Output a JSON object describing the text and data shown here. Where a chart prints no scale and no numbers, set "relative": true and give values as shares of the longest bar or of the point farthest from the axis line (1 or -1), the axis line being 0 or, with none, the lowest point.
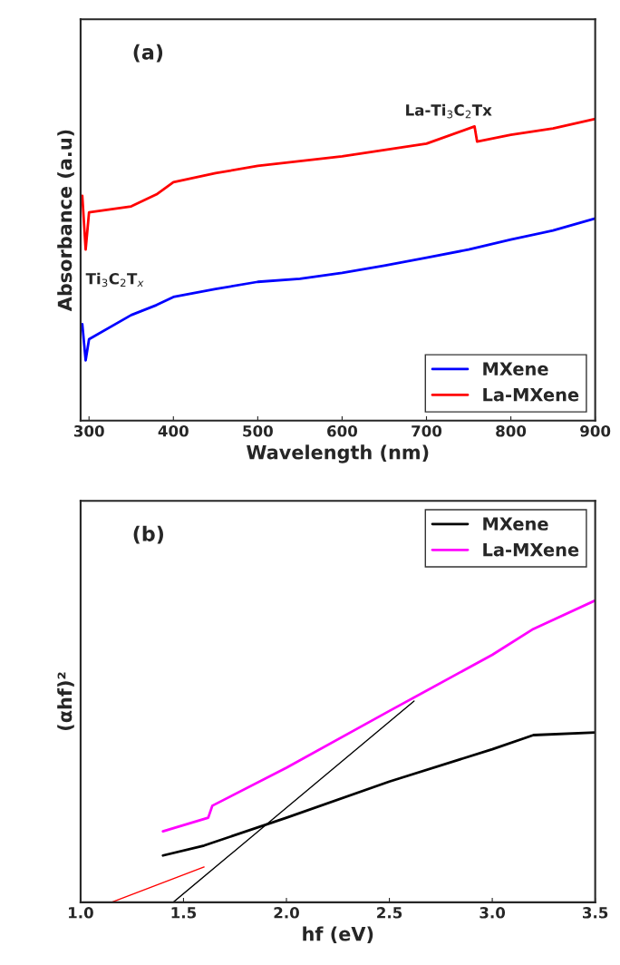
{
  "chart_data": [
    {
      "type": "line",
      "xlabel": "Wavelength (nm)",
      "ylabel": "Absorbance (a.u)",
      "relative": true,
      "xlim": [
        290,
        900
      ],
      "xticks": [
        300,
        400,
        500,
        600,
        700,
        800,
        900
      ],
      "legend": "bottom right",
      "grid": false,
      "annotations": [
        "(a)",
        "La-Ti$_{3}$C$_{2}$Tx",
        "Ti$_{3}$C$_{2}$T$_{x}$"
      ],
      "series": [
        {
          "name": "MXene",
          "color": "#0000ff",
          "x": [
            292,
            296,
            300,
            350,
            380,
            400,
            450,
            500,
            550,
            600,
            650,
            700,
            750,
            800,
            850,
            900
          ],
          "values": [
            0.32,
            0.2,
            0.27,
            0.35,
            0.383,
            0.41,
            0.436,
            0.46,
            0.47,
            0.49,
            0.514,
            0.54,
            0.567,
            0.6,
            0.63,
            0.67
          ]
        },
        {
          "name": "La-MXene",
          "color": "#ff0000",
          "x": [
            292,
            296,
            300,
            350,
            380,
            390,
            400,
            450,
            500,
            550,
            600,
            650,
            700,
            757,
            760,
            800,
            850,
            900
          ],
          "values": [
            0.745,
            0.567,
            0.69,
            0.71,
            0.75,
            0.77,
            0.79,
            0.82,
            0.844,
            0.86,
            0.876,
            0.897,
            0.918,
            0.975,
            0.925,
            0.947,
            0.968,
            1.0
          ]
        }
      ]
    },
    {
      "type": "line",
      "xlabel": "hf (eV)",
      "ylabel": "(αhf)²",
      "relative": true,
      "xlim": [
        1.0,
        3.5
      ],
      "xticks": [
        {
          "value": 1.0,
          "label": "1.0"
        },
        1.5,
        {
          "value": 2.0,
          "label": "2.0"
        },
        2.5,
        {
          "value": 3.0,
          "label": "3.0"
        },
        3.5
      ],
      "legend": "top right",
      "grid": false,
      "annotations": [
        "(b)"
      ],
      "series": [
        {
          "name": "MXene",
          "color": "#000000",
          "x": [
            1.4,
            1.6,
            2.0,
            2.5,
            3.0,
            3.2,
            3.5
          ],
          "values": [
            0.155,
            0.188,
            0.28,
            0.4,
            0.507,
            0.554,
            0.563
          ]
        },
        {
          "name": "La-MXene",
          "color": "#ff00ff",
          "x": [
            1.4,
            1.62,
            1.64,
            2.0,
            2.5,
            3.0,
            3.2,
            3.5
          ],
          "values": [
            0.235,
            0.28,
            0.32,
            0.446,
            0.634,
            0.82,
            0.906,
            1.0
          ]
        },
        {
          "color": "#000000",
          "x": [
            1.45,
            2.62
          ],
          "values": [
            0,
            0.667
          ]
        },
        {
          "color": "#ff0000",
          "x": [
            1.15,
            1.6
          ],
          "values": [
            0,
            0.117
          ]
        }
      ]
    }
  ]
}
